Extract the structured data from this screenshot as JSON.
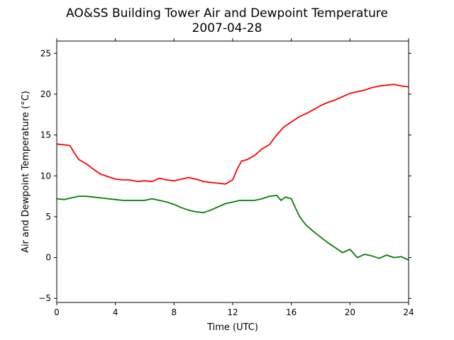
{
  "chart_data": {
    "type": "line",
    "title": "AO&SS Building Tower Air and Dewpoint Temperature",
    "subtitle": "2007-04-28",
    "xlabel": "Time (UTC)",
    "ylabel": "Air and Dewpoint Temperature (°C)",
    "xlim": [
      0,
      24
    ],
    "ylim": [
      -5.5,
      26.5
    ],
    "xticks": [
      0,
      4,
      8,
      12,
      16,
      20,
      24
    ],
    "yticks": [
      -5,
      0,
      5,
      10,
      15,
      20,
      25
    ],
    "grid": false,
    "legend": "none",
    "series": [
      {
        "color": "#ff0000",
        "points": [
          [
            0.0,
            13.9
          ],
          [
            0.5,
            13.8
          ],
          [
            0.9,
            13.7
          ],
          [
            1.2,
            12.8
          ],
          [
            1.5,
            12.0
          ],
          [
            2.0,
            11.5
          ],
          [
            2.5,
            10.8
          ],
          [
            3.0,
            10.2
          ],
          [
            3.5,
            9.9
          ],
          [
            4.0,
            9.6
          ],
          [
            4.5,
            9.5
          ],
          [
            5.0,
            9.5
          ],
          [
            5.5,
            9.3
          ],
          [
            6.0,
            9.4
          ],
          [
            6.5,
            9.3
          ],
          [
            7.0,
            9.7
          ],
          [
            7.5,
            9.5
          ],
          [
            8.0,
            9.4
          ],
          [
            8.5,
            9.6
          ],
          [
            9.0,
            9.8
          ],
          [
            9.5,
            9.6
          ],
          [
            10.0,
            9.3
          ],
          [
            10.5,
            9.2
          ],
          [
            11.0,
            9.1
          ],
          [
            11.5,
            9.0
          ],
          [
            12.0,
            9.5
          ],
          [
            12.3,
            10.8
          ],
          [
            12.6,
            11.8
          ],
          [
            13.0,
            12.0
          ],
          [
            13.5,
            12.5
          ],
          [
            14.0,
            13.3
          ],
          [
            14.5,
            13.8
          ],
          [
            15.0,
            15.0
          ],
          [
            15.5,
            16.0
          ],
          [
            16.0,
            16.6
          ],
          [
            16.5,
            17.2
          ],
          [
            17.0,
            17.6
          ],
          [
            17.5,
            18.1
          ],
          [
            18.0,
            18.6
          ],
          [
            18.5,
            19.0
          ],
          [
            19.0,
            19.3
          ],
          [
            19.5,
            19.7
          ],
          [
            20.0,
            20.1
          ],
          [
            20.5,
            20.3
          ],
          [
            21.0,
            20.5
          ],
          [
            21.5,
            20.8
          ],
          [
            22.0,
            21.0
          ],
          [
            22.5,
            21.1
          ],
          [
            23.0,
            21.2
          ],
          [
            23.5,
            21.0
          ],
          [
            24.0,
            20.9
          ]
        ]
      },
      {
        "color": "#008000",
        "points": [
          [
            0.0,
            7.2
          ],
          [
            0.5,
            7.1
          ],
          [
            1.0,
            7.3
          ],
          [
            1.5,
            7.5
          ],
          [
            2.0,
            7.5
          ],
          [
            2.5,
            7.4
          ],
          [
            3.0,
            7.3
          ],
          [
            3.5,
            7.2
          ],
          [
            4.0,
            7.1
          ],
          [
            4.5,
            7.0
          ],
          [
            5.0,
            7.0
          ],
          [
            5.5,
            7.0
          ],
          [
            6.0,
            7.0
          ],
          [
            6.5,
            7.2
          ],
          [
            7.0,
            7.0
          ],
          [
            7.5,
            6.8
          ],
          [
            8.0,
            6.5
          ],
          [
            8.5,
            6.1
          ],
          [
            9.0,
            5.8
          ],
          [
            9.5,
            5.6
          ],
          [
            10.0,
            5.5
          ],
          [
            10.5,
            5.8
          ],
          [
            11.0,
            6.2
          ],
          [
            11.5,
            6.6
          ],
          [
            12.0,
            6.8
          ],
          [
            12.5,
            7.0
          ],
          [
            13.0,
            7.0
          ],
          [
            13.5,
            7.0
          ],
          [
            14.0,
            7.2
          ],
          [
            14.5,
            7.5
          ],
          [
            15.0,
            7.6
          ],
          [
            15.3,
            7.0
          ],
          [
            15.6,
            7.4
          ],
          [
            16.0,
            7.2
          ],
          [
            16.3,
            6.0
          ],
          [
            16.6,
            4.9
          ],
          [
            17.0,
            4.0
          ],
          [
            17.5,
            3.2
          ],
          [
            18.0,
            2.5
          ],
          [
            18.5,
            1.8
          ],
          [
            19.0,
            1.2
          ],
          [
            19.5,
            0.6
          ],
          [
            20.0,
            1.0
          ],
          [
            20.5,
            0.0
          ],
          [
            21.0,
            0.4
          ],
          [
            21.5,
            0.2
          ],
          [
            22.0,
            -0.1
          ],
          [
            22.5,
            0.3
          ],
          [
            23.0,
            0.0
          ],
          [
            23.5,
            0.1
          ],
          [
            24.0,
            -0.3
          ]
        ]
      }
    ]
  }
}
